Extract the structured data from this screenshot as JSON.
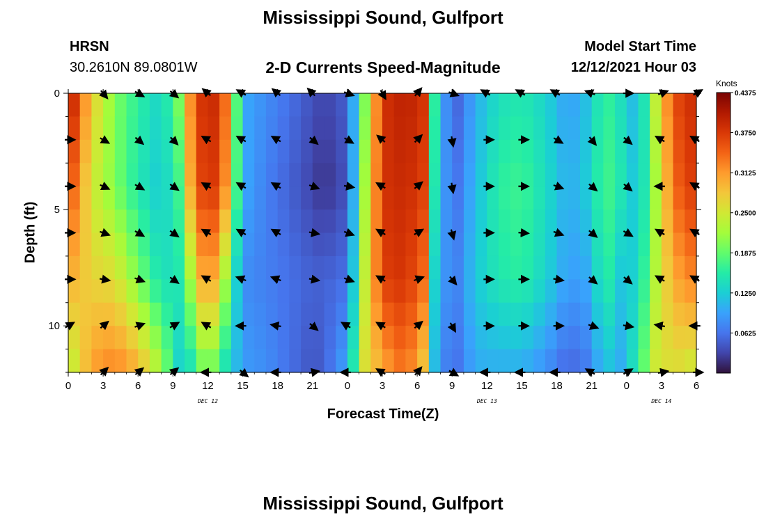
{
  "title": "Mississippi Sound, Gulfport",
  "footer_title": "Mississippi Sound, Gulfport",
  "station": {
    "code": "HRSN",
    "coords": "30.2610N  89.0801W"
  },
  "subtitle": "2-D Currents Speed-Magnitude",
  "model_start": {
    "label": "Model Start Time",
    "value": "12/12/2021 Hour 03"
  },
  "chart_data": {
    "type": "heatmap",
    "title": "2-D Currents Speed-Magnitude",
    "xlabel": "Forecast Time(Z)",
    "ylabel": "Depth (ft)",
    "x_ticks": [
      "0",
      "3",
      "6",
      "9",
      "12",
      "15",
      "18",
      "21",
      "0",
      "3",
      "6",
      "9",
      "12",
      "15",
      "18",
      "21",
      "0",
      "3",
      "6"
    ],
    "y_ticks": [
      "0",
      "5",
      "10"
    ],
    "xlim_hours": [
      0,
      54
    ],
    "ylim_ft": [
      12,
      0
    ],
    "day_labels": [
      "DEC 12",
      "DEC 13",
      "DEC 14"
    ],
    "colorbar": {
      "units": "Knots",
      "range": [
        0.0,
        0.4375
      ],
      "ticks": [
        "0.4375",
        "0.3750",
        "0.3125",
        "0.2500",
        "0.1875",
        "0.1250",
        "0.0625"
      ],
      "colors": [
        "#30123b",
        "#4145ab",
        "#4675ed",
        "#39a2fc",
        "#1bcfd4",
        "#24eca6",
        "#61fc6c",
        "#a4fc3b",
        "#d1e834",
        "#f3c63a",
        "#fe9b2d",
        "#f36315",
        "#d93806",
        "#b11901",
        "#7a0403"
      ]
    },
    "speed_profile": {
      "hours": [
        0,
        2,
        4,
        6,
        8,
        9.5,
        10.5,
        12,
        13.5,
        15,
        17,
        19,
        21,
        22,
        24,
        25.5,
        27,
        29,
        30.5,
        31.5,
        33,
        35,
        37,
        39,
        41,
        43,
        45,
        46,
        47.5,
        49,
        50.5,
        52,
        54
      ],
      "depths_ft": [
        0,
        4,
        8,
        12
      ],
      "speed_knots": [
        [
          0.42,
          0.37,
          0.3,
          0.22
        ],
        [
          0.28,
          0.25,
          0.27,
          0.31
        ],
        [
          0.2,
          0.2,
          0.26,
          0.33
        ],
        [
          0.16,
          0.15,
          0.2,
          0.3
        ],
        [
          0.13,
          0.12,
          0.14,
          0.22
        ],
        [
          0.2,
          0.17,
          0.15,
          0.13
        ],
        [
          0.32,
          0.3,
          0.22,
          0.14
        ],
        [
          0.41,
          0.4,
          0.34,
          0.21
        ],
        [
          0.34,
          0.32,
          0.22,
          0.14
        ],
        [
          0.1,
          0.1,
          0.08,
          0.09
        ],
        [
          0.08,
          0.07,
          0.07,
          0.08
        ],
        [
          0.06,
          0.05,
          0.06,
          0.06
        ],
        [
          0.04,
          0.03,
          0.05,
          0.04
        ],
        [
          0.03,
          0.02,
          0.05,
          0.05
        ],
        [
          0.05,
          0.04,
          0.06,
          0.1
        ],
        [
          0.2,
          0.22,
          0.24,
          0.26
        ],
        [
          0.38,
          0.38,
          0.37,
          0.3
        ],
        [
          0.4,
          0.39,
          0.38,
          0.34
        ],
        [
          0.38,
          0.37,
          0.34,
          0.28
        ],
        [
          0.16,
          0.15,
          0.13,
          0.11
        ],
        [
          0.04,
          0.05,
          0.06,
          0.05
        ],
        [
          0.1,
          0.11,
          0.12,
          0.1
        ],
        [
          0.14,
          0.16,
          0.15,
          0.1
        ],
        [
          0.15,
          0.17,
          0.16,
          0.1
        ],
        [
          0.13,
          0.14,
          0.13,
          0.08
        ],
        [
          0.09,
          0.1,
          0.09,
          0.05
        ],
        [
          0.12,
          0.13,
          0.1,
          0.07
        ],
        [
          0.17,
          0.18,
          0.17,
          0.12
        ],
        [
          0.14,
          0.15,
          0.12,
          0.1
        ],
        [
          0.1,
          0.11,
          0.13,
          0.16
        ],
        [
          0.24,
          0.22,
          0.23,
          0.25
        ],
        [
          0.36,
          0.34,
          0.3,
          0.26
        ],
        [
          0.39,
          0.38,
          0.33,
          0.24
        ]
      ]
    },
    "vectors": {
      "hours": [
        0,
        3,
        6,
        9,
        12,
        15,
        18,
        21,
        24,
        27,
        30,
        33,
        36,
        39,
        42,
        45,
        48,
        51,
        54
      ],
      "depths_ft": [
        0,
        2,
        4,
        6,
        8,
        10,
        12
      ],
      "direction_deg": [
        [
          null,
          140,
          120,
          130,
          310,
          300,
          310,
          315,
          110,
          150,
          40,
          110,
          300,
          300,
          300,
          290,
          90,
          70,
          60
        ],
        [
          90,
          120,
          130,
          135,
          300,
          300,
          300,
          130,
          120,
          310,
          45,
          170,
          90,
          90,
          120,
          140,
          130,
          300,
          300
        ],
        [
          90,
          115,
          120,
          125,
          300,
          300,
          300,
          110,
          100,
          300,
          50,
          170,
          90,
          90,
          110,
          130,
          130,
          270,
          300
        ],
        [
          90,
          110,
          120,
          125,
          300,
          300,
          300,
          100,
          110,
          300,
          60,
          165,
          90,
          95,
          110,
          130,
          120,
          300,
          300
        ],
        [
          90,
          100,
          110,
          125,
          300,
          290,
          290,
          100,
          110,
          300,
          70,
          140,
          90,
          90,
          100,
          130,
          130,
          300,
          300
        ],
        [
          60,
          50,
          70,
          60,
          300,
          270,
          280,
          130,
          300,
          300,
          50,
          150,
          90,
          90,
          90,
          110,
          100,
          280,
          270
        ],
        [
          null,
          45,
          50,
          50,
          270,
          130,
          270,
          80,
          270,
          300,
          40,
          120,
          270,
          270,
          270,
          300,
          60,
          80,
          90
        ]
      ]
    }
  }
}
